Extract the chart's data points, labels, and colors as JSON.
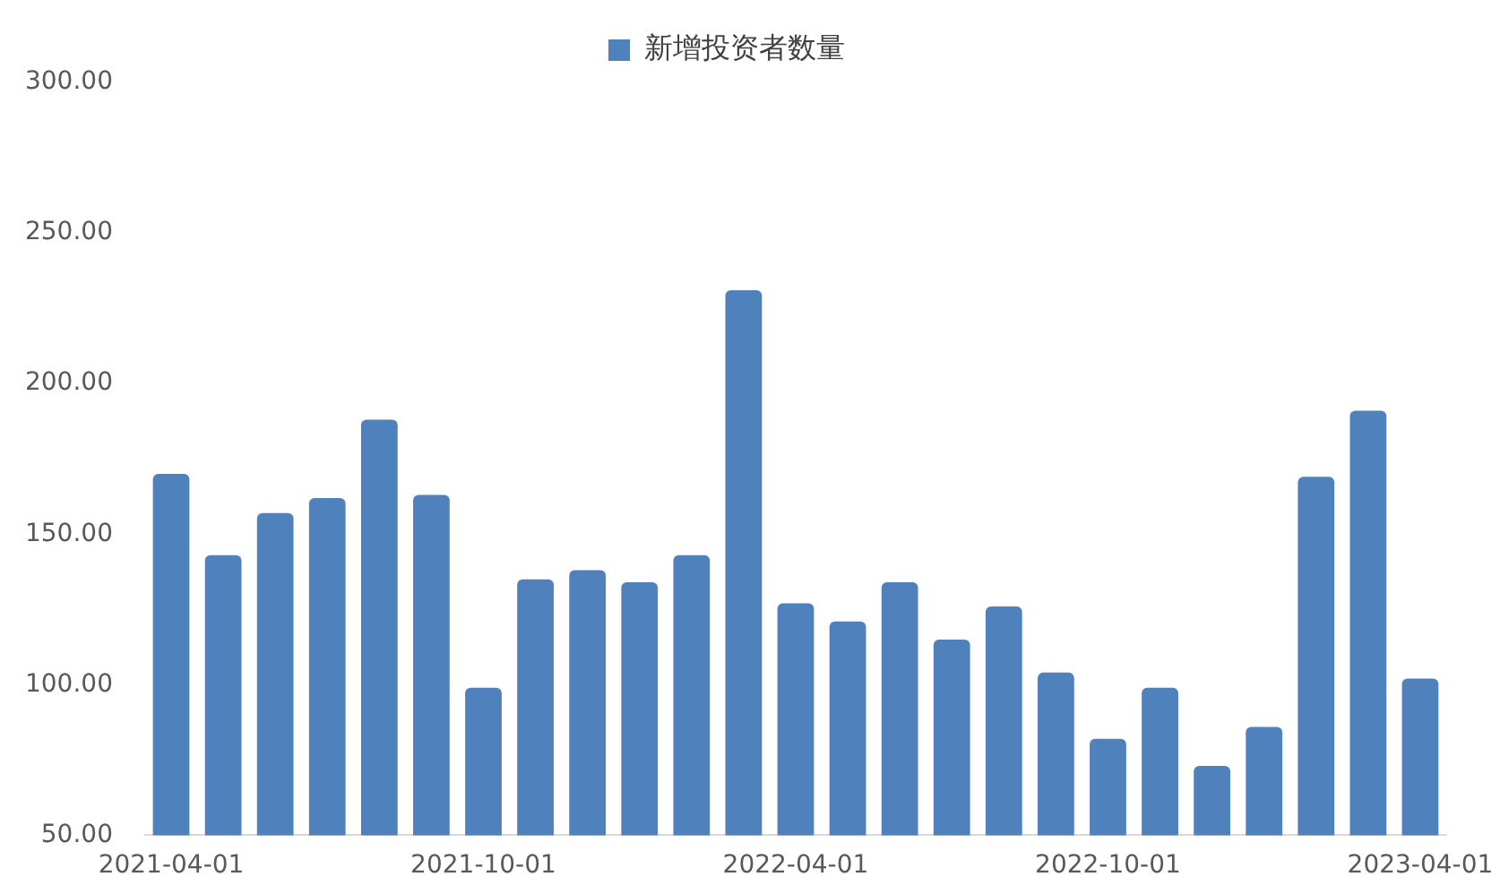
{
  "chart_data": {
    "type": "bar",
    "categories": [
      "2021-04-01",
      null,
      null,
      null,
      null,
      null,
      "2021-10-01",
      null,
      null,
      null,
      null,
      null,
      "2022-04-01",
      null,
      null,
      null,
      null,
      null,
      "2022-10-01",
      null,
      null,
      null,
      null,
      null,
      "2023-04-01"
    ],
    "series": [
      {
        "name": "新增投资者数量",
        "color": "#4f81bd",
        "values": [
          170,
          143,
          157,
          162,
          188,
          163,
          99,
          135,
          138,
          134,
          143,
          231,
          127,
          121,
          134,
          115,
          126,
          104,
          82,
          99,
          73,
          86,
          169,
          191,
          102
        ]
      }
    ],
    "ylim": [
      50,
      300
    ],
    "yticks": [
      {
        "value": 50,
        "label": "50.00"
      },
      {
        "value": 100,
        "label": "100.00"
      },
      {
        "value": 150,
        "label": "150.00"
      },
      {
        "value": 200,
        "label": "200.00"
      },
      {
        "value": 250,
        "label": "250.00"
      },
      {
        "value": 300,
        "label": "300.00"
      }
    ],
    "grid": false,
    "legend": "top"
  }
}
